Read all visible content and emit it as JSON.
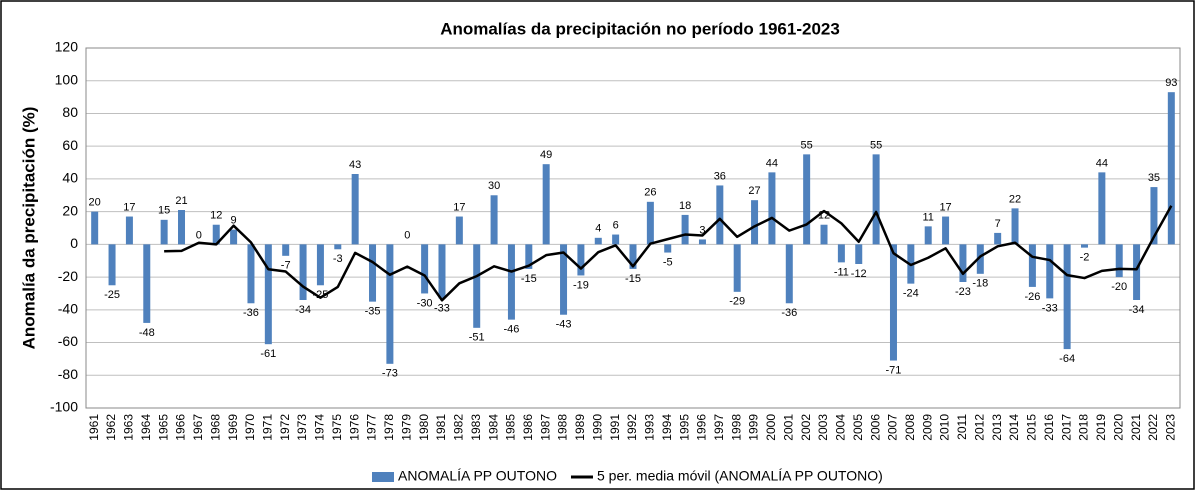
{
  "chart_data": {
    "type": "bar",
    "title": "Anomalías da precipitación no período 1961-2023",
    "y_label": "Anomalía da precipitación (%)",
    "categories": [
      "1961",
      "1962",
      "1963",
      "1964",
      "1965",
      "1966",
      "1967",
      "1968",
      "1969",
      "1970",
      "1971",
      "1972",
      "1973",
      "1974",
      "1975",
      "1976",
      "1977",
      "1978",
      "1979",
      "1980",
      "1981",
      "1982",
      "1983",
      "1984",
      "1985",
      "1986",
      "1987",
      "1988",
      "1989",
      "1990",
      "1991",
      "1992",
      "1993",
      "1994",
      "1995",
      "1996",
      "1997",
      "1998",
      "1999",
      "2000",
      "2001",
      "2002",
      "2003",
      "2004",
      "2005",
      "2006",
      "2007",
      "2008",
      "2009",
      "2010",
      "2011",
      "2012",
      "2013",
      "2014",
      "2015",
      "2016",
      "2017",
      "2018",
      "2019",
      "2020",
      "2021",
      "2022",
      "2023"
    ],
    "series": [
      {
        "name": "ANOMALÍA PP OUTONO",
        "type": "bar",
        "color": "#4f81bd",
        "values": [
          20,
          -25,
          17,
          -48,
          15,
          21,
          0,
          12,
          9,
          -36,
          -61,
          -7,
          -34,
          -25,
          -3,
          43,
          -35,
          -73,
          0,
          -30,
          -33,
          17,
          -51,
          30,
          -46,
          -15,
          49,
          -43,
          -19,
          4,
          6,
          -15,
          26,
          -5,
          18,
          3,
          36,
          -29,
          27,
          44,
          -36,
          55,
          12,
          -11,
          -12,
          55,
          -71,
          -24,
          11,
          17,
          -23,
          -18,
          7,
          22,
          -26,
          -33,
          -64,
          -2,
          44,
          -20,
          -34,
          35,
          93
        ]
      },
      {
        "name": "5 per. media móvil (ANOMALÍA PP OUTONO)",
        "type": "line",
        "color": "#000000",
        "values": [
          null,
          null,
          null,
          null,
          -4.2,
          -4,
          1,
          0,
          11.4,
          1.2,
          -15.2,
          -16.6,
          -25.8,
          -32.6,
          -26,
          -5.2,
          -10.8,
          -18.6,
          -13.6,
          -19,
          -34.2,
          -23.8,
          -19.4,
          -13.4,
          -16.6,
          -13,
          -6.6,
          -5,
          -14.8,
          -4.8,
          -0.6,
          -13.4,
          0.4,
          3.2,
          6,
          5.4,
          15.6,
          4.6,
          11,
          16.2,
          8.4,
          12.2,
          20.4,
          12.8,
          1.6,
          19.8,
          -5.4,
          -12.6,
          -8.2,
          -2.4,
          -18,
          -7.4,
          -1.2,
          1,
          -7.6,
          -9.6,
          -18.8,
          -20.6,
          -16.2,
          -15,
          -15.2,
          4.6,
          23.6
        ]
      }
    ],
    "ylim": [
      -100,
      120
    ],
    "yticks": [
      -100,
      -80,
      -60,
      -40,
      -20,
      0,
      20,
      40,
      60,
      80,
      100,
      120
    ],
    "grid": true,
    "legend": "bottom"
  }
}
